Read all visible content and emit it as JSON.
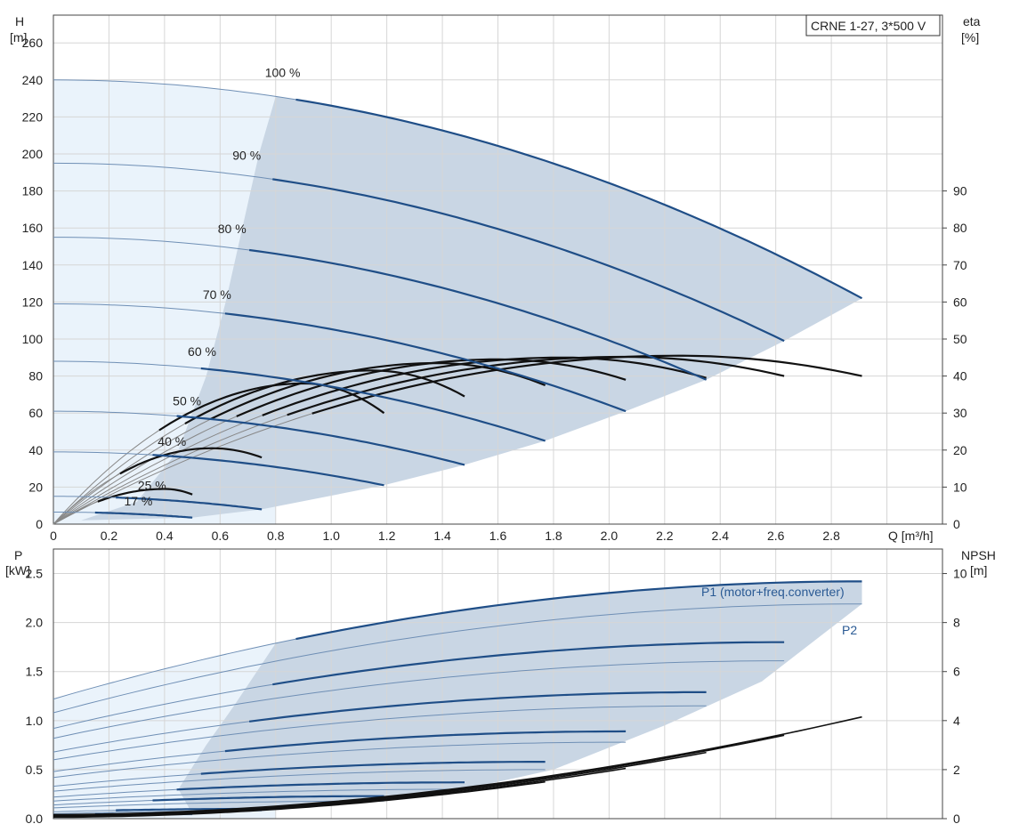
{
  "chart_data": [
    {
      "type": "line",
      "title": "CRNE 1-27, 3*500 V",
      "xlabel": "Q [m³/h]",
      "ylabel_left_name": "H",
      "ylabel_left_unit": "[m]",
      "ylabel_right_name": "eta",
      "ylabel_right_unit": "[%]",
      "xlim": [
        0,
        3.2
      ],
      "ylim_left": [
        0,
        275
      ],
      "ylim_right": [
        0,
        137.5
      ],
      "x_ticks": [
        "0",
        "0.2",
        "0.4",
        "0.6",
        "0.8",
        "1.0",
        "1.2",
        "1.4",
        "1.6",
        "1.8",
        "2.0",
        "2.2",
        "2.4",
        "2.6",
        "2.8"
      ],
      "y_ticks_left": [
        "0",
        "20",
        "40",
        "60",
        "80",
        "100",
        "120",
        "140",
        "160",
        "180",
        "200",
        "220",
        "240",
        "260"
      ],
      "y_ticks_right": [
        "0",
        "10",
        "20",
        "30",
        "40",
        "50",
        "60",
        "70",
        "80",
        "90"
      ],
      "grid": true,
      "operating_range_shaded": true,
      "speed_curves": [
        {
          "name": "100 %",
          "h0": 240,
          "qmax": 2.91,
          "hend": 122
        },
        {
          "name": "90 %",
          "h0": 195,
          "qmax": 2.63,
          "hend": 99
        },
        {
          "name": "80 %",
          "h0": 155,
          "qmax": 2.35,
          "hend": 78
        },
        {
          "name": "70 %",
          "h0": 119,
          "qmax": 2.06,
          "hend": 61
        },
        {
          "name": "60 %",
          "h0": 88,
          "qmax": 1.77,
          "hend": 45
        },
        {
          "name": "50 %",
          "h0": 61,
          "qmax": 1.48,
          "hend": 32
        },
        {
          "name": "40 %",
          "h0": 39,
          "qmax": 1.19,
          "hend": 21
        },
        {
          "name": "25 %",
          "h0": 15,
          "qmax": 0.75,
          "hend": 8
        },
        {
          "name": "17 %",
          "h0": 6.5,
          "qmax": 0.5,
          "hend": 3.5
        }
      ],
      "efficiency_curves_eta_percent": [
        {
          "qmax": 2.91,
          "peak_q": 2.25,
          "peak_eta": 45.5,
          "end_eta": 40
        },
        {
          "qmax": 2.63,
          "peak_q": 2.05,
          "peak_eta": 45.2,
          "end_eta": 40
        },
        {
          "qmax": 2.35,
          "peak_q": 1.83,
          "peak_eta": 45,
          "end_eta": 39.5
        },
        {
          "qmax": 2.06,
          "peak_q": 1.6,
          "peak_eta": 44.5,
          "end_eta": 39
        },
        {
          "qmax": 1.77,
          "peak_q": 1.38,
          "peak_eta": 43.5,
          "end_eta": 37.5
        },
        {
          "qmax": 1.48,
          "peak_q": 1.15,
          "peak_eta": 41.5,
          "end_eta": 34.5
        },
        {
          "qmax": 1.19,
          "peak_q": 0.9,
          "peak_eta": 38,
          "end_eta": 30
        },
        {
          "qmax": 0.75,
          "peak_q": 0.57,
          "peak_eta": 20.5,
          "end_eta": 18
        },
        {
          "qmax": 0.5,
          "peak_q": 0.4,
          "peak_eta": 9.5,
          "end_eta": 8
        }
      ]
    },
    {
      "type": "line",
      "xlabel": "Q [m³/h]",
      "ylabel_left_name": "P",
      "ylabel_left_unit": "[kW]",
      "ylabel_right_name": "NPSH",
      "ylabel_right_unit": "[m]",
      "xlim": [
        0,
        3.2
      ],
      "ylim_left": [
        0,
        2.75
      ],
      "ylim_right": [
        0,
        11
      ],
      "y_ticks_left": [
        "0.0",
        "0.5",
        "1.0",
        "1.5",
        "2.0",
        "2.5"
      ],
      "y_ticks_right": [
        "0",
        "2",
        "4",
        "6",
        "8",
        "10"
      ],
      "grid": true,
      "series_labels": [
        "P1 (motor+freq.converter)",
        "P2"
      ],
      "power_curves_kw": [
        {
          "qmax": 2.91,
          "p1_start": 1.22,
          "p1_end": 2.42,
          "p2_start": 1.08,
          "p2_end": 2.19
        },
        {
          "qmax": 2.63,
          "p1_start": 0.92,
          "p1_end": 1.8,
          "p2_start": 0.82,
          "p2_end": 1.61
        },
        {
          "qmax": 2.35,
          "p1_start": 0.68,
          "p1_end": 1.29,
          "p2_start": 0.6,
          "p2_end": 1.15
        },
        {
          "qmax": 2.06,
          "p1_start": 0.48,
          "p1_end": 0.89,
          "p2_start": 0.42,
          "p2_end": 0.78
        },
        {
          "qmax": 1.77,
          "p1_start": 0.33,
          "p1_end": 0.58,
          "p2_start": 0.28,
          "p2_end": 0.5
        },
        {
          "qmax": 1.48,
          "p1_start": 0.22,
          "p1_end": 0.37,
          "p2_start": 0.18,
          "p2_end": 0.3
        },
        {
          "qmax": 1.19,
          "p1_start": 0.14,
          "p1_end": 0.23,
          "p2_start": 0.11,
          "p2_end": 0.18
        },
        {
          "qmax": 0.75,
          "p1_start": 0.07,
          "p1_end": 0.1,
          "p2_start": 0.05,
          "p2_end": 0.08
        },
        {
          "qmax": 0.5,
          "p1_start": 0.04,
          "p1_end": 0.05,
          "p2_start": 0.03,
          "p2_end": 0.04
        }
      ],
      "npsh_curves_m": [
        {
          "qmax": 2.91,
          "npsh_end": 4.15
        },
        {
          "qmax": 2.63,
          "npsh_end": 3.4
        },
        {
          "qmax": 2.35,
          "npsh_end": 2.7
        },
        {
          "qmax": 2.06,
          "npsh_end": 2.05
        },
        {
          "qmax": 1.77,
          "npsh_end": 1.5
        }
      ]
    }
  ],
  "colors": {
    "head_line": "#1f4e87",
    "head_line_thin": "#6f8fb5",
    "eta_line": "#111111",
    "eta_line_thin": "#888888",
    "range_fill": "#c9d6e4",
    "low_region_fill": "#eaf3fb",
    "grid": "#d6d6d6"
  }
}
